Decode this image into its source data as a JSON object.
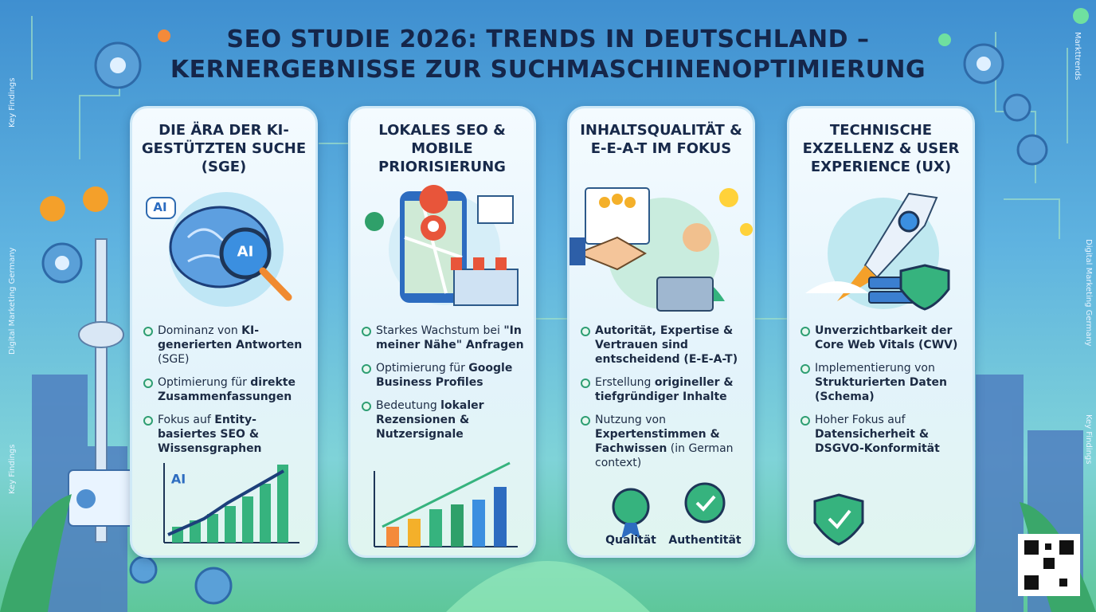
{
  "title_lines": [
    "SEO STUDIE 2026: TRENDS IN DEUTSCHLAND –",
    "KERNERGEBNISSE ZUR SUCHMASCHINENOPTIMIERUNG"
  ],
  "side_labels": {
    "left_top": "Key Findings",
    "left_middle": "Digital Marketing Germany",
    "left_bottom": "Key Findings",
    "right_top": "Markttrends",
    "right_middle": "Digital Marketing Germany",
    "right_bottom": "Key Findings"
  },
  "cards": [
    {
      "title": "DIE ÄRA DER KI-GESTÜTZTEN SUCHE (SGE)",
      "icon_labels": [
        "AI",
        "AI",
        "AI"
      ],
      "bullets": [
        [
          {
            "text": "Dominanz von ",
            "bold": false
          },
          {
            "text": "KI-generierten Antworten",
            "bold": true
          },
          {
            "text": " (SGE)",
            "bold": false
          }
        ],
        [
          {
            "text": "Optimierung für ",
            "bold": false
          },
          {
            "text": "direkte Zusammenfassungen",
            "bold": true
          }
        ],
        [
          {
            "text": "Fokus auf ",
            "bold": false
          },
          {
            "text": "Entity-basiertes SEO & Wissensgraphen",
            "bold": true
          }
        ]
      ]
    },
    {
      "title": "LOKALES SEO & MOBILE PRIORISIERUNG",
      "bullets": [
        [
          {
            "text": "Starkes Wachstum bei ",
            "bold": false
          },
          {
            "text": "\"In meiner Nähe\" Anfragen",
            "bold": true
          }
        ],
        [
          {
            "text": "Optimierung für ",
            "bold": false
          },
          {
            "text": "Google Business Profiles",
            "bold": true
          }
        ],
        [
          {
            "text": "Bedeutung ",
            "bold": false
          },
          {
            "text": "lokaler Rezensionen & Nutzersignale",
            "bold": true
          }
        ]
      ]
    },
    {
      "title": "INHALTSQUALITÄT & E-E-A-T IM FOKUS",
      "icon_labels": [
        "Qualität",
        "Authentität"
      ],
      "bullets": [
        [
          {
            "text": "Autorität, Expertise & Vertrauen sind entscheidend (E-E-A-T)",
            "bold": true
          }
        ],
        [
          {
            "text": "Erstellung ",
            "bold": false
          },
          {
            "text": "origineller & tiefgründiger Inhalte",
            "bold": true
          }
        ],
        [
          {
            "text": "Nutzung von ",
            "bold": false
          },
          {
            "text": "Expertenstimmen & Fachwissen",
            "bold": true
          },
          {
            "text": " (in German context)",
            "bold": false
          }
        ]
      ]
    },
    {
      "title": "TECHNISCHE EXZELLENZ & USER EXPERIENCE (UX)",
      "bullets": [
        [
          {
            "text": "Unverzichtbarkeit der Core Web Vitals (CWV)",
            "bold": true
          }
        ],
        [
          {
            "text": "Implementierung von ",
            "bold": false
          },
          {
            "text": "Strukturierten Daten (Schema)",
            "bold": true
          }
        ],
        [
          {
            "text": "Hoher Fokus auf ",
            "bold": false
          },
          {
            "text": "Datensicherheit & DSGVO-Konformität",
            "bold": true
          }
        ]
      ]
    }
  ]
}
